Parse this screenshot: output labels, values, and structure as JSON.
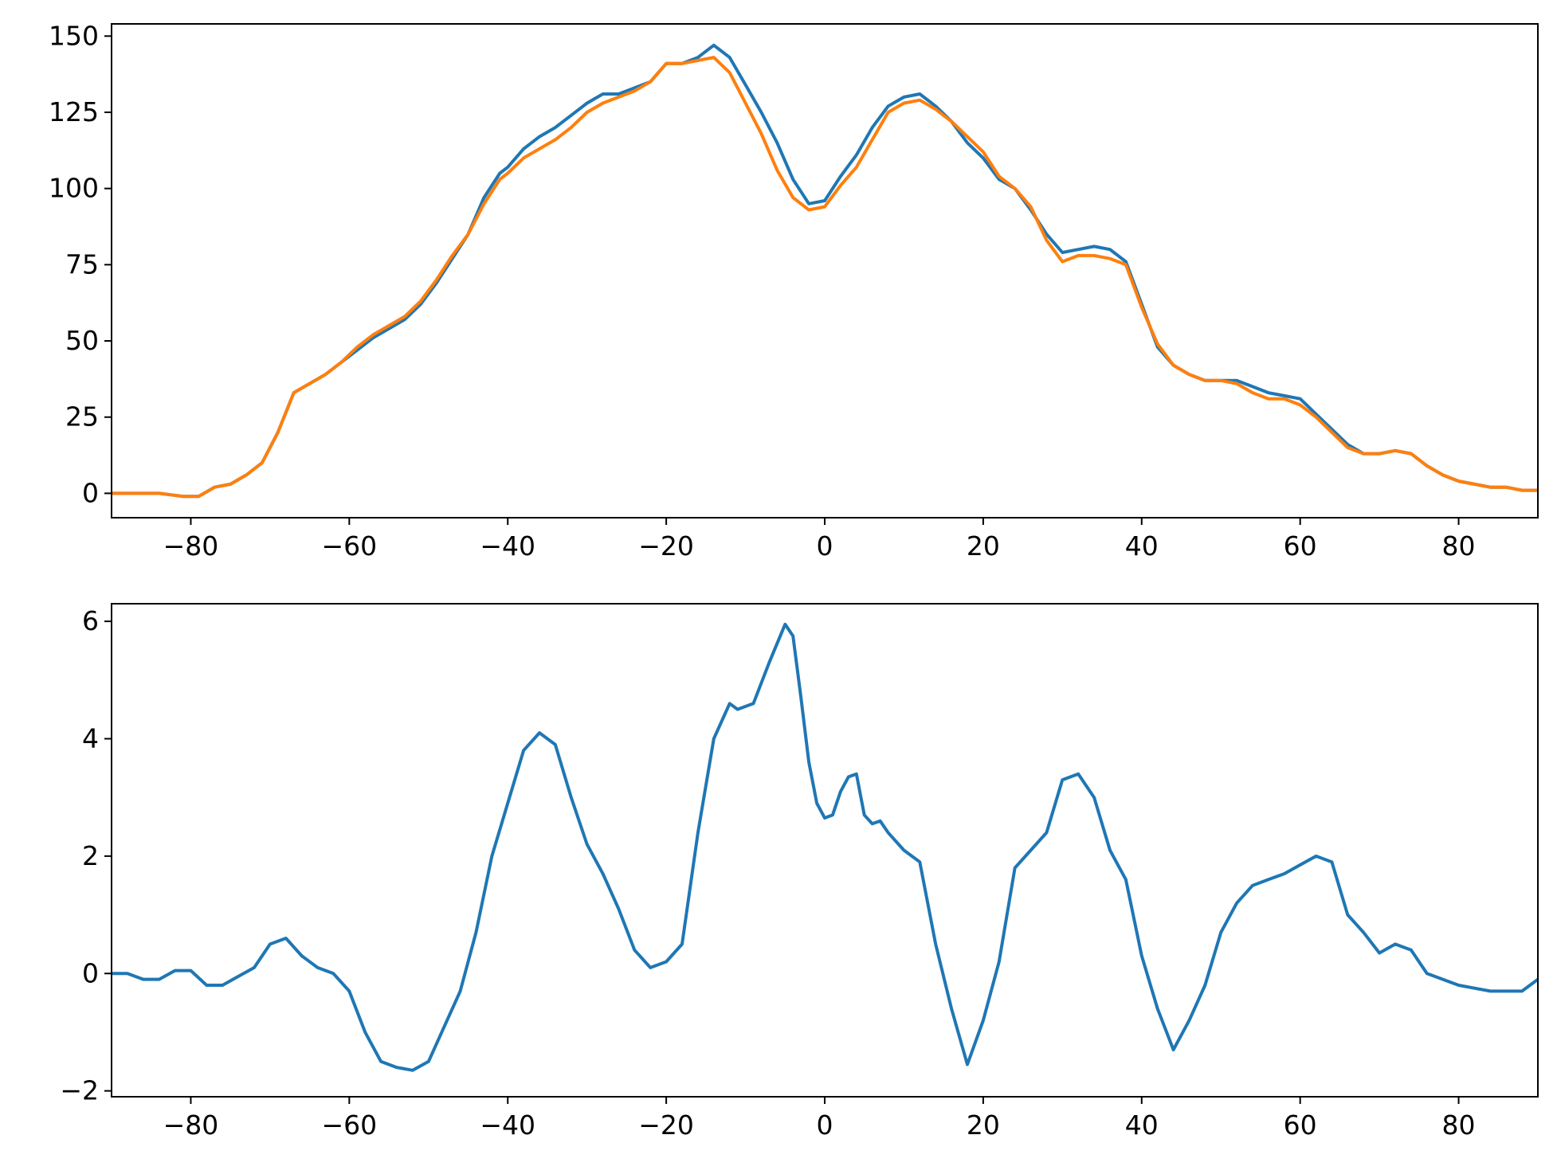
{
  "chart_data": [
    {
      "type": "line",
      "title": "",
      "xlabel": "",
      "ylabel": "",
      "xlim": [
        -90,
        90
      ],
      "ylim": [
        -8,
        154
      ],
      "xticks": [
        -80,
        -60,
        -40,
        -20,
        0,
        20,
        40,
        60,
        80
      ],
      "xtick_labels": [
        "−80",
        "−60",
        "−40",
        "−20",
        "0",
        "20",
        "40",
        "60",
        "80"
      ],
      "yticks": [
        0,
        25,
        50,
        75,
        100,
        125,
        150
      ],
      "ytick_labels": [
        "0",
        "25",
        "50",
        "75",
        "100",
        "125",
        "150"
      ],
      "grid": false,
      "legend": "none",
      "series": [
        {
          "color": "#1f77b4",
          "x": [
            -90,
            -87,
            -84,
            -81,
            -79,
            -77,
            -75,
            -73,
            -71,
            -69,
            -67,
            -65,
            -63,
            -61,
            -59,
            -57,
            -55,
            -53,
            -51,
            -49,
            -47,
            -45,
            -43,
            -41,
            -40,
            -38,
            -36,
            -34,
            -32,
            -30,
            -28,
            -26,
            -24,
            -22,
            -20,
            -18,
            -16,
            -14,
            -12,
            -10,
            -8,
            -6,
            -4,
            -2,
            0,
            2,
            4,
            6,
            8,
            10,
            12,
            14,
            16,
            18,
            20,
            22,
            24,
            26,
            28,
            30,
            32,
            34,
            36,
            38,
            40,
            42,
            44,
            46,
            48,
            50,
            52,
            54,
            56,
            58,
            60,
            62,
            64,
            66,
            68,
            70,
            72,
            74,
            76,
            78,
            80,
            82,
            84,
            86,
            88,
            90
          ],
          "y": [
            0,
            0,
            0,
            -1,
            -1,
            2,
            3,
            6,
            10,
            20,
            33,
            36,
            39,
            43,
            47,
            51,
            54,
            57,
            62,
            69,
            77,
            85,
            97,
            105,
            107,
            113,
            117,
            120,
            124,
            128,
            131,
            131,
            133,
            135,
            141,
            141,
            143,
            147,
            143,
            134,
            125,
            115,
            103,
            95,
            96,
            104,
            111,
            120,
            127,
            130,
            131,
            127,
            122,
            115,
            110,
            103,
            100,
            93,
            85,
            79,
            80,
            81,
            80,
            76,
            62,
            48,
            42,
            39,
            37,
            37,
            37,
            35,
            33,
            32,
            31,
            26,
            21,
            16,
            13,
            13,
            14,
            13,
            9,
            6,
            4,
            3,
            2,
            2,
            1,
            1
          ]
        },
        {
          "color": "#ff7f0e",
          "x": [
            -90,
            -87,
            -84,
            -81,
            -79,
            -77,
            -75,
            -73,
            -71,
            -69,
            -67,
            -65,
            -63,
            -61,
            -59,
            -57,
            -55,
            -53,
            -51,
            -49,
            -47,
            -45,
            -43,
            -41,
            -40,
            -38,
            -36,
            -34,
            -32,
            -30,
            -28,
            -26,
            -24,
            -22,
            -20,
            -18,
            -16,
            -14,
            -12,
            -10,
            -8,
            -6,
            -4,
            -2,
            0,
            2,
            4,
            6,
            8,
            10,
            12,
            14,
            16,
            18,
            20,
            22,
            24,
            26,
            28,
            30,
            32,
            34,
            36,
            38,
            40,
            42,
            44,
            46,
            48,
            50,
            52,
            54,
            56,
            58,
            60,
            62,
            64,
            66,
            68,
            70,
            72,
            74,
            76,
            78,
            80,
            82,
            84,
            86,
            88,
            90
          ],
          "y": [
            0,
            0,
            0,
            -1,
            -1,
            2,
            3,
            6,
            10,
            20,
            33,
            36,
            39,
            43,
            48,
            52,
            55,
            58,
            63,
            70,
            78,
            85,
            95,
            103,
            105,
            110,
            113,
            116,
            120,
            125,
            128,
            130,
            132,
            135,
            141,
            141,
            142,
            143,
            138,
            128,
            118,
            106,
            97,
            93,
            94,
            101,
            107,
            116,
            125,
            128,
            129,
            126,
            122,
            117,
            112,
            104,
            100,
            94,
            83,
            76,
            78,
            78,
            77,
            75,
            61,
            49,
            42,
            39,
            37,
            37,
            36,
            33,
            31,
            31,
            29,
            25,
            20,
            15,
            13,
            13,
            14,
            13,
            9,
            6,
            4,
            3,
            2,
            2,
            1,
            1
          ]
        }
      ]
    },
    {
      "type": "line",
      "title": "",
      "xlabel": "",
      "ylabel": "",
      "xlim": [
        -90,
        90
      ],
      "ylim": [
        -2.1,
        6.3
      ],
      "xticks": [
        -80,
        -60,
        -40,
        -20,
        0,
        20,
        40,
        60,
        80
      ],
      "xtick_labels": [
        "−80",
        "−60",
        "−40",
        "−20",
        "0",
        "20",
        "40",
        "60",
        "80"
      ],
      "yticks": [
        -2,
        0,
        2,
        4,
        6
      ],
      "ytick_labels": [
        "−2",
        "0",
        "2",
        "4",
        "6"
      ],
      "grid": false,
      "legend": "none",
      "series": [
        {
          "color": "#1f77b4",
          "x": [
            -90,
            -88,
            -86,
            -84,
            -82,
            -80,
            -78,
            -76,
            -74,
            -72,
            -70,
            -68,
            -66,
            -64,
            -62,
            -60,
            -58,
            -56,
            -54,
            -52,
            -50,
            -48,
            -46,
            -44,
            -42,
            -40,
            -38,
            -36,
            -34,
            -32,
            -30,
            -28,
            -26,
            -24,
            -22,
            -20,
            -18,
            -16,
            -14,
            -12,
            -11,
            -9,
            -7,
            -5,
            -4,
            -3,
            -2,
            -1,
            0,
            1,
            2,
            3,
            4,
            5,
            6,
            7,
            8,
            10,
            12,
            14,
            16,
            18,
            20,
            22,
            24,
            26,
            28,
            30,
            32,
            34,
            36,
            38,
            40,
            42,
            44,
            46,
            48,
            50,
            52,
            54,
            56,
            58,
            60,
            62,
            64,
            66,
            68,
            70,
            72,
            74,
            76,
            78,
            80,
            82,
            84,
            86,
            88,
            90
          ],
          "y": [
            0,
            0,
            -0.1,
            -0.1,
            0.05,
            0.05,
            -0.2,
            -0.2,
            -0.05,
            0.1,
            0.5,
            0.6,
            0.3,
            0.1,
            0.0,
            -0.3,
            -1.0,
            -1.5,
            -1.6,
            -1.65,
            -1.5,
            -0.9,
            -0.3,
            0.7,
            2.0,
            2.9,
            3.8,
            4.1,
            3.9,
            3.0,
            2.2,
            1.7,
            1.1,
            0.4,
            0.1,
            0.2,
            0.5,
            2.4,
            4.0,
            4.6,
            4.5,
            4.6,
            5.3,
            5.95,
            5.75,
            4.7,
            3.6,
            2.9,
            2.65,
            2.7,
            3.1,
            3.35,
            3.4,
            2.7,
            2.55,
            2.6,
            2.4,
            2.1,
            1.9,
            0.5,
            -0.6,
            -1.55,
            -0.8,
            0.2,
            1.8,
            2.1,
            2.4,
            3.3,
            3.4,
            3.0,
            2.1,
            1.6,
            0.3,
            -0.6,
            -1.3,
            -0.8,
            -0.2,
            0.7,
            1.2,
            1.5,
            1.6,
            1.7,
            1.85,
            2.0,
            1.9,
            1.0,
            0.7,
            0.35,
            0.5,
            0.4,
            0.0,
            -0.1,
            -0.2,
            -0.25,
            -0.3,
            -0.3,
            -0.3,
            -0.1
          ]
        }
      ]
    }
  ]
}
